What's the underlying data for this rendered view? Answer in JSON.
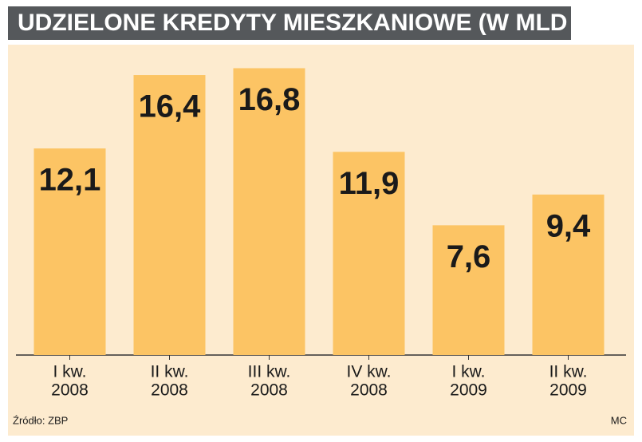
{
  "chart_data": {
    "type": "bar",
    "title": "UDZIELONE KREDYTY MIESZKANIOWE (W MLD ZŁ)",
    "categories": [
      [
        "I kw.",
        "2008"
      ],
      [
        "II kw.",
        "2008"
      ],
      [
        "III kw.",
        "2008"
      ],
      [
        "IV kw.",
        "2008"
      ],
      [
        "I kw.",
        "2009"
      ],
      [
        "II kw.",
        "2009"
      ]
    ],
    "values": [
      12.1,
      16.4,
      16.8,
      11.9,
      7.6,
      9.4
    ],
    "value_labels": [
      "12,1",
      "16,4",
      "16,8",
      "11,9",
      "7,6",
      "9,4"
    ],
    "color": "#fcc464",
    "ylim": [
      0,
      20
    ],
    "source": "Źródło: ZBP",
    "credit": "MC"
  }
}
